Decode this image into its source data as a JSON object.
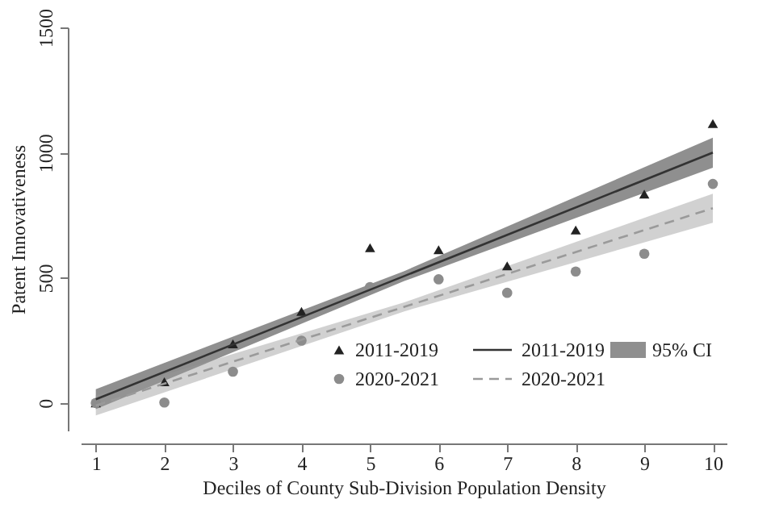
{
  "chart_data": {
    "type": "scatter",
    "xlabel": "Deciles of County Sub-Division Population Density",
    "ylabel": "Patent Innovativeness",
    "xlim": [
      0.78,
      10.2
    ],
    "xticks": [
      1,
      2,
      3,
      4,
      5,
      6,
      7,
      8,
      9,
      10
    ],
    "ylim": [
      -110,
      1500
    ],
    "yticks": [
      0,
      500,
      1000,
      1500
    ],
    "grid": false,
    "legend": "bottom right",
    "annotations": [
      "95% CI"
    ],
    "series": [
      {
        "name": "2011-2019",
        "marker": "triangle",
        "color": "#222222",
        "x": [
          1,
          2,
          3,
          4,
          5,
          6,
          7,
          8,
          9,
          10
        ],
        "values": [
          0,
          85,
          236,
          366,
          620,
          612,
          548,
          691,
          834,
          1116
        ]
      },
      {
        "name": "2020-2021",
        "marker": "circle",
        "color": "#8c8c8c",
        "x": [
          1,
          2,
          3,
          4,
          5,
          6,
          7,
          8,
          9,
          10
        ],
        "values": [
          0,
          2,
          125,
          249,
          463,
          494,
          440,
          525,
          596,
          875
        ]
      },
      {
        "name": "2011-2019",
        "type": "line",
        "line_style": "solid",
        "color": "#333333",
        "x": [
          1,
          5.5,
          10
        ],
        "values": [
          15,
          507,
          1000
        ],
        "lower": [
          -25,
          487,
          940
        ],
        "upper": [
          55,
          527,
          1060
        ]
      },
      {
        "name": "2020-2021",
        "type": "line",
        "line_style": "dashed",
        "color": "#9a9a9a",
        "x": [
          1,
          5.5,
          10
        ],
        "values": [
          -10,
          384,
          778
        ],
        "lower": [
          -50,
          366,
          720
        ],
        "upper": [
          30,
          402,
          836
        ]
      }
    ]
  }
}
